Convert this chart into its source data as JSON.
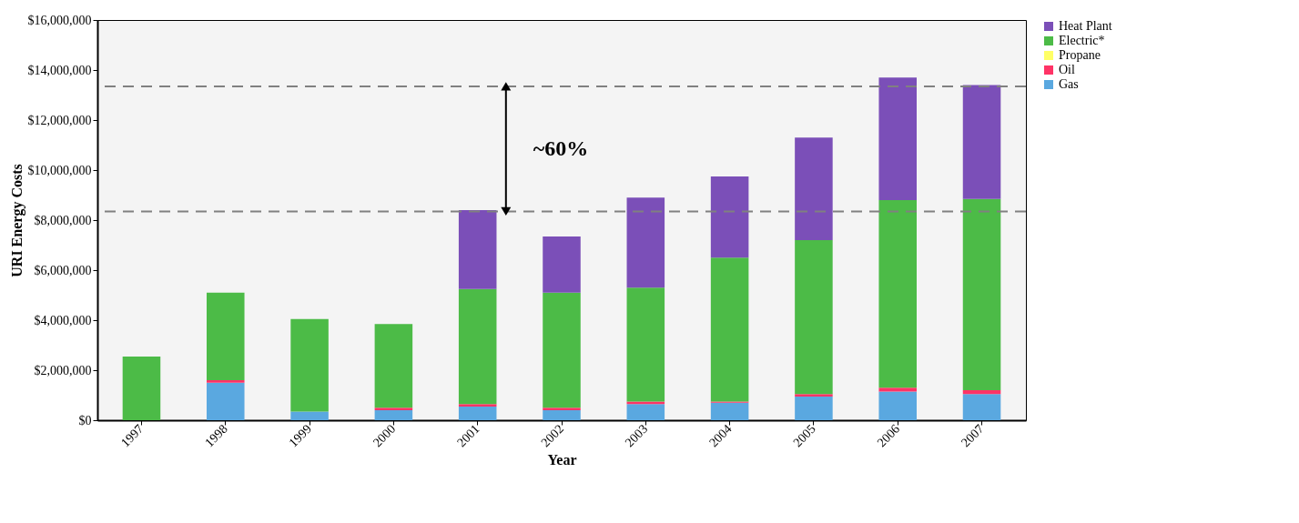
{
  "chart_data": {
    "type": "bar",
    "stacked": true,
    "xlabel": "Year",
    "ylabel": "URI Energy Costs",
    "categories": [
      "1997",
      "1998",
      "1999",
      "2000",
      "2001",
      "2002",
      "2003",
      "2004",
      "2005",
      "2006",
      "2007"
    ],
    "series": [
      {
        "name": "Gas",
        "color": "#5aa8e0",
        "values": [
          0,
          1500000,
          350000,
          400000,
          550000,
          400000,
          650000,
          700000,
          950000,
          1150000,
          1050000
        ]
      },
      {
        "name": "Oil",
        "color": "#ff3366",
        "values": [
          0,
          100000,
          0,
          100000,
          100000,
          100000,
          100000,
          50000,
          100000,
          150000,
          150000
        ]
      },
      {
        "name": "Propane",
        "color": "#ffff66",
        "values": [
          0,
          0,
          0,
          0,
          0,
          0,
          0,
          0,
          0,
          0,
          0
        ]
      },
      {
        "name": "Electric*",
        "color": "#4cbb47",
        "values": [
          2550000,
          3500000,
          3700000,
          3350000,
          4600000,
          4600000,
          4550000,
          5750000,
          6150000,
          7500000,
          7650000
        ]
      },
      {
        "name": "Heat Plant",
        "color": "#7b4fb8",
        "values": [
          0,
          0,
          0,
          0,
          3150000,
          2250000,
          3600000,
          3250000,
          4100000,
          4900000,
          4550000
        ]
      }
    ],
    "ylim": [
      0,
      16000000
    ],
    "yticks": [
      {
        "value": 0,
        "label": "$0"
      },
      {
        "value": 2000000,
        "label": "$2,000,000"
      },
      {
        "value": 4000000,
        "label": "$4,000,000"
      },
      {
        "value": 6000000,
        "label": "$6,000,000"
      },
      {
        "value": 8000000,
        "label": "$8,000,000"
      },
      {
        "value": 10000000,
        "label": "$10,000,000"
      },
      {
        "value": 12000000,
        "label": "$12,000,000"
      },
      {
        "value": 14000000,
        "label": "$14,000,000"
      },
      {
        "value": 16000000,
        "label": "$16,000,000"
      }
    ],
    "ref_lines": [
      {
        "axis": "y",
        "value": 13350000,
        "color": "#808080",
        "line_style": "dashed"
      },
      {
        "axis": "y",
        "value": 8350000,
        "color": "#808080",
        "line_style": "dashed"
      }
    ],
    "annotations": [
      "~60%"
    ],
    "grid": false,
    "legend": "right"
  }
}
